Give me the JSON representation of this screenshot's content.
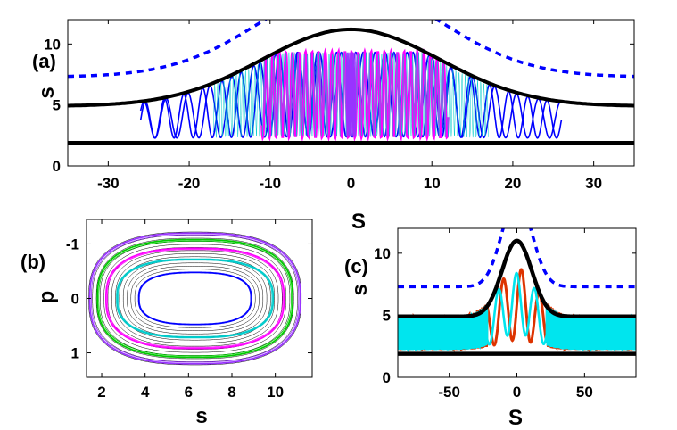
{
  "chart_data": [
    {
      "panel_label": "(a)",
      "type": "line",
      "xlabel": "S",
      "ylabel": "s",
      "xlim": [
        -35,
        35
      ],
      "ylim": [
        12,
        0
      ],
      "xticks": [
        "-30",
        "-20",
        "-10",
        "0",
        "10",
        "20",
        "30"
      ],
      "yticks": [
        "0",
        "5",
        "10"
      ],
      "boundaries": {
        "upper_wall_level": 1.9,
        "lower_wall": {
          "edge_value": 4.9,
          "center_value": 11.2,
          "gaussian_width": 11
        },
        "dashed_line": {
          "edge_value": 7.3,
          "center_value": 14.8,
          "gaussian_width": 11
        }
      },
      "trajectories": [
        {
          "color": "#0000ff",
          "x_range": [
            -26,
            26
          ]
        },
        {
          "color": "#ff00ff",
          "x_range": [
            -11,
            12
          ]
        },
        {
          "color": "#00cccc",
          "x_range": [
            -17,
            17
          ]
        },
        {
          "color": "#9933ff",
          "x_range": [
            -0.6,
            0.6
          ]
        }
      ],
      "colors": {
        "wall": "#000000",
        "dashed": "#0000ff"
      }
    },
    {
      "panel_label": "(b)",
      "type": "line",
      "xlabel": "s",
      "ylabel": "p",
      "xlim": [
        1.3,
        11.7
      ],
      "ylim": [
        -1.45,
        1.45
      ],
      "xticks": [
        "2",
        "4",
        "6",
        "8",
        "10"
      ],
      "yticks": [
        "-1",
        "0",
        "1"
      ],
      "center": [
        6.3,
        0
      ],
      "orbits": [
        {
          "color": "#0000ff",
          "rx": 2.6,
          "ry": 0.48
        },
        {
          "color": "#00cccc",
          "rx": 3.6,
          "ry": 0.72
        },
        {
          "color": "#ff00ff",
          "rx": 4.1,
          "ry": 0.92
        },
        {
          "color": "#00cc00",
          "rx": 4.5,
          "ry": 1.08
        },
        {
          "color": "#9933ff",
          "rx": 4.85,
          "ry": 1.2
        }
      ]
    },
    {
      "panel_label": "(c)",
      "type": "line",
      "xlabel": "S",
      "ylabel": "s",
      "xlim": [
        -88,
        88
      ],
      "ylim": [
        12,
        0
      ],
      "xticks": [
        "-50",
        "0",
        "50"
      ],
      "yticks": [
        "0",
        "5",
        "10"
      ],
      "boundaries": {
        "upper_wall_level": 1.9,
        "lower_wall": {
          "edge_value": 4.9,
          "center_value": 11.0,
          "gaussian_width": 11
        },
        "dashed_line": {
          "edge_value": 7.3,
          "center_value": 14.5,
          "gaussian_width": 11
        }
      },
      "trajectories": [
        {
          "color": "#dd3300",
          "x_range": [
            -88,
            88
          ]
        },
        {
          "color": "#00e5ee",
          "x_range": [
            -88,
            88
          ]
        }
      ],
      "colors": {
        "wall": "#000000",
        "dashed": "#0000ff"
      }
    }
  ]
}
